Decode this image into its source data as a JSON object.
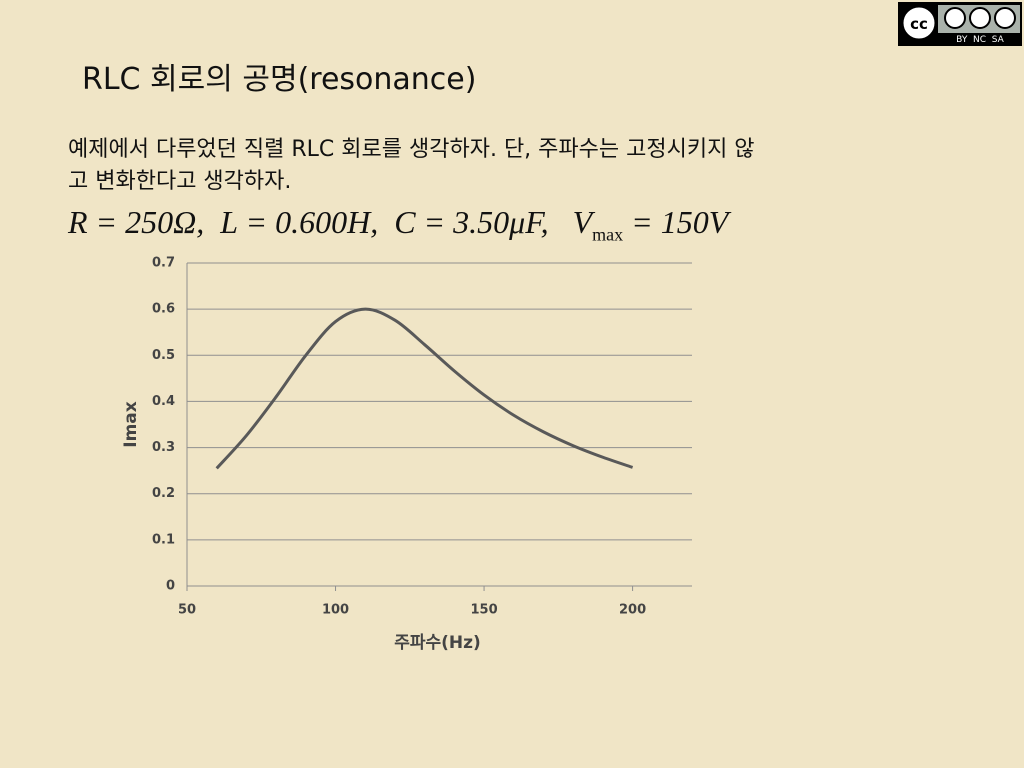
{
  "slide": {
    "title": "RLC 회로의 공명(resonance)",
    "body_lines": [
      "예제에서 다루었던 직렬 RLC 회로를 생각하자.  단, 주파수는 고정시키지 않",
      "고 변화한다고 생각하자."
    ],
    "equation": {
      "main": "R = 250Ω,  L = 0.600H,  C = 3.50μF,   V",
      "subscript": "max",
      "rest": " = 150V"
    },
    "license": {
      "logo": "cc",
      "labels": "BY  NC  SA"
    }
  },
  "chart_data": {
    "type": "line",
    "x_label": "주파수(Hz)",
    "y_label": "Imax",
    "x": [
      60,
      70,
      80,
      90,
      100,
      110,
      120,
      130,
      140,
      150,
      160,
      170,
      180,
      190,
      200
    ],
    "series": [
      {
        "name": "Imax",
        "color": "#595959",
        "values": [
          0.255,
          0.326,
          0.41,
          0.5,
          0.573,
          0.6,
          0.576,
          0.523,
          0.466,
          0.414,
          0.37,
          0.334,
          0.304,
          0.279,
          0.257
        ]
      }
    ],
    "xlim": [
      50,
      220
    ],
    "xticks": [
      50,
      100,
      150,
      200
    ],
    "ylim": [
      0,
      0.7
    ],
    "yticks": [
      0,
      0.1,
      0.2,
      0.3,
      0.4,
      0.5,
      0.6,
      0.7
    ],
    "grid": true
  }
}
